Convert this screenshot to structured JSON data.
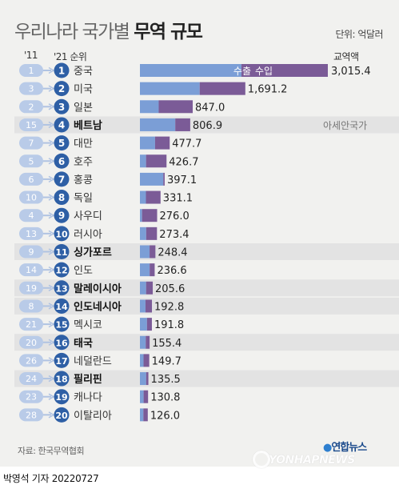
{
  "header": {
    "title_light": "우리나라 국가별",
    "title_bold": "무역 규모",
    "unit": "단위: 억달러"
  },
  "columns": {
    "rank_2011": "'11",
    "rank_2021": "'21 순위",
    "total": "교역액"
  },
  "legend": {
    "export": "수출",
    "import": "수입"
  },
  "annotation": "아세안국가",
  "colors": {
    "export": "#7b9ed6",
    "import": "#7b5b97",
    "badge_2011": "#b9cbe8",
    "badge_2021": "#2e5fa5",
    "arrow": "#b0c3e2",
    "asean_row": "#e3e3e3"
  },
  "chart_data": {
    "type": "bar",
    "stacked": true,
    "orientation": "horizontal",
    "series": [
      {
        "name": "수출"
      },
      {
        "name": "수입"
      }
    ],
    "rows": [
      {
        "rank_2011": "1",
        "rank_2021": "1",
        "country": "중국",
        "total": "3,015.4",
        "value": 3015.4,
        "export": 1629,
        "asean": false
      },
      {
        "rank_2011": "3",
        "rank_2021": "2",
        "country": "미국",
        "total": "1,691.2",
        "value": 1691.2,
        "export": 959,
        "asean": false
      },
      {
        "rank_2011": "2",
        "rank_2021": "3",
        "country": "일본",
        "total": "847.0",
        "value": 847.0,
        "export": 301,
        "asean": false
      },
      {
        "rank_2011": "15",
        "rank_2021": "4",
        "country": "베트남",
        "total": "806.9",
        "value": 806.9,
        "export": 567,
        "asean": true
      },
      {
        "rank_2011": "7",
        "rank_2021": "5",
        "country": "대만",
        "total": "477.7",
        "value": 477.7,
        "export": 243,
        "asean": false
      },
      {
        "rank_2011": "5",
        "rank_2021": "6",
        "country": "호주",
        "total": "426.7",
        "value": 426.7,
        "export": 98,
        "asean": false
      },
      {
        "rank_2011": "6",
        "rank_2021": "7",
        "country": "홍콩",
        "total": "397.1",
        "value": 397.1,
        "export": 375,
        "asean": false
      },
      {
        "rank_2011": "10",
        "rank_2021": "8",
        "country": "독일",
        "total": "331.1",
        "value": 331.1,
        "export": 96,
        "asean": false
      },
      {
        "rank_2011": "4",
        "rank_2021": "9",
        "country": "사우디",
        "total": "276.0",
        "value": 276.0,
        "export": 34,
        "asean": false
      },
      {
        "rank_2011": "13",
        "rank_2021": "10",
        "country": "러시아",
        "total": "273.4",
        "value": 273.4,
        "export": 100,
        "asean": false
      },
      {
        "rank_2011": "9",
        "rank_2021": "11",
        "country": "싱가포르",
        "total": "248.4",
        "value": 248.4,
        "export": 155,
        "asean": true
      },
      {
        "rank_2011": "14",
        "rank_2021": "12",
        "country": "인도",
        "total": "236.6",
        "value": 236.6,
        "export": 156,
        "asean": false
      },
      {
        "rank_2011": "19",
        "rank_2021": "13",
        "country": "말레이시아",
        "total": "205.6",
        "value": 205.6,
        "export": 99,
        "asean": true
      },
      {
        "rank_2011": "8",
        "rank_2021": "14",
        "country": "인도네시아",
        "total": "192.8",
        "value": 192.8,
        "export": 89,
        "asean": true
      },
      {
        "rank_2011": "21",
        "rank_2021": "15",
        "country": "멕시코",
        "total": "191.8",
        "value": 191.8,
        "export": 113,
        "asean": false
      },
      {
        "rank_2011": "20",
        "rank_2021": "16",
        "country": "태국",
        "total": "155.4",
        "value": 155.4,
        "export": 93,
        "asean": true
      },
      {
        "rank_2011": "26",
        "rank_2021": "17",
        "country": "네덜란드",
        "total": "149.7",
        "value": 149.7,
        "export": 58,
        "asean": false
      },
      {
        "rank_2011": "24",
        "rank_2021": "18",
        "country": "필리핀",
        "total": "135.5",
        "value": 135.5,
        "export": 100,
        "asean": true
      },
      {
        "rank_2011": "23",
        "rank_2021": "19",
        "country": "캐나다",
        "total": "130.8",
        "value": 130.8,
        "export": 59,
        "asean": false
      },
      {
        "rank_2011": "28",
        "rank_2021": "20",
        "country": "이탈리아",
        "total": "126.0",
        "value": 126.0,
        "export": 55,
        "asean": false
      }
    ]
  },
  "footer": {
    "source": "자료: 한국무역협회",
    "logo_kr_prefix": "연합뉴스",
    "logo_en": "YONHAPNEWS",
    "byline": "박영석 기자 20220727"
  }
}
